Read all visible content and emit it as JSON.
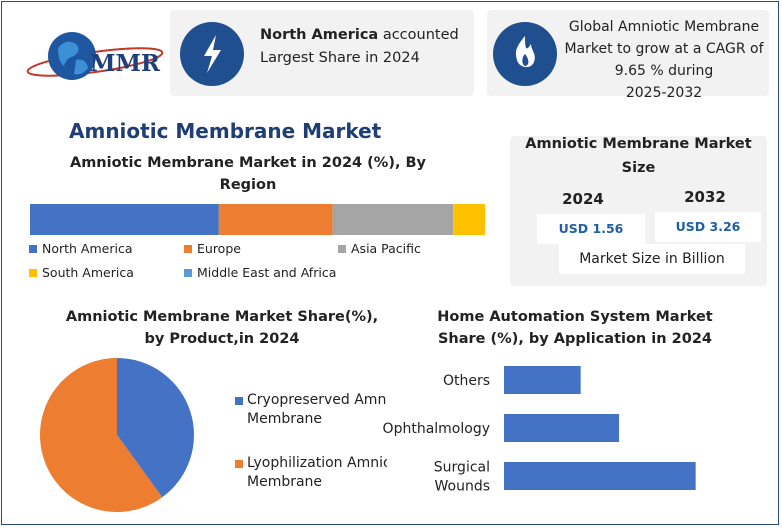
{
  "logo": {
    "text": "MMR"
  },
  "header": {
    "card1": {
      "bold": "North America",
      "rest": " accounted",
      "line2": "Largest Share in 2024"
    },
    "card2": {
      "line1": "Global Amniotic Membrane",
      "line2": "Market to grow at a CAGR of",
      "line3": "9.65 % during",
      "line4": "2025-2032"
    }
  },
  "main_title": "Amniotic Membrane Market",
  "size_card": {
    "title_l1": "Amniotic Membrane Market",
    "title_l2": "Size",
    "years": [
      "2024",
      "2032"
    ],
    "values": [
      "USD 1.56",
      "USD 3.26"
    ],
    "footer": "Market Size in Billion"
  },
  "colors": {
    "north_america": "#4472c4",
    "europe": "#ed7d31",
    "asia_pacific": "#a5a5a5",
    "south_america": "#ffc000",
    "mea": "#5b9bd5",
    "navy": "#1f4f8f",
    "size_value": "#1f5fa8"
  },
  "icons": {
    "card1": "lightning-icon",
    "card2": "flame-icon"
  },
  "chart_data": [
    {
      "type": "bar",
      "orientation": "horizontal-stacked",
      "title": "Amniotic Membrane Market in 2024 (%), By Region",
      "title_l1": "Amniotic Membrane Market in 2024 (%), By",
      "title_l2": "Region",
      "categories": [
        "North America",
        "Europe",
        "Asia Pacific",
        "South America",
        "Middle East and Africa"
      ],
      "values": [
        41.5,
        25.0,
        26.5,
        7.0,
        0.0
      ],
      "legend": [
        "North America",
        "Europe",
        "Asia Pacific",
        "South America",
        "Middle East and Africa"
      ],
      "legend_position": "bottom"
    },
    {
      "type": "pie",
      "title": "Amniotic Membrane Market  Share(%), by Product,in 2024",
      "title_l1": "Amniotic Membrane Market  Share(%),",
      "title_l2": "by Product,in 2024",
      "categories": [
        "Cryopreserved Amniotic Membrane",
        "Lyophilization Amniotic Membrane"
      ],
      "legend_lines": [
        [
          "Cryopreserved Amnio",
          "Membrane"
        ],
        [
          "Lyophilization Amnio",
          "Membrane"
        ]
      ],
      "values": [
        40,
        60
      ],
      "legend_position": "right"
    },
    {
      "type": "bar",
      "orientation": "horizontal",
      "title": "Home Automation System Market Share (%), by Application  in 2024",
      "title_l1": "Home Automation System Market",
      "title_l2": "Share (%), by Application  in 2024",
      "categories": [
        "Others",
        "Ophthalmology",
        "Surgical Wounds"
      ],
      "category_lines": [
        [
          "Others"
        ],
        [
          "Ophthalmology"
        ],
        [
          "Surgical",
          "Wounds"
        ]
      ],
      "values": [
        20,
        30,
        50
      ],
      "xlim": [
        0,
        60
      ]
    }
  ]
}
